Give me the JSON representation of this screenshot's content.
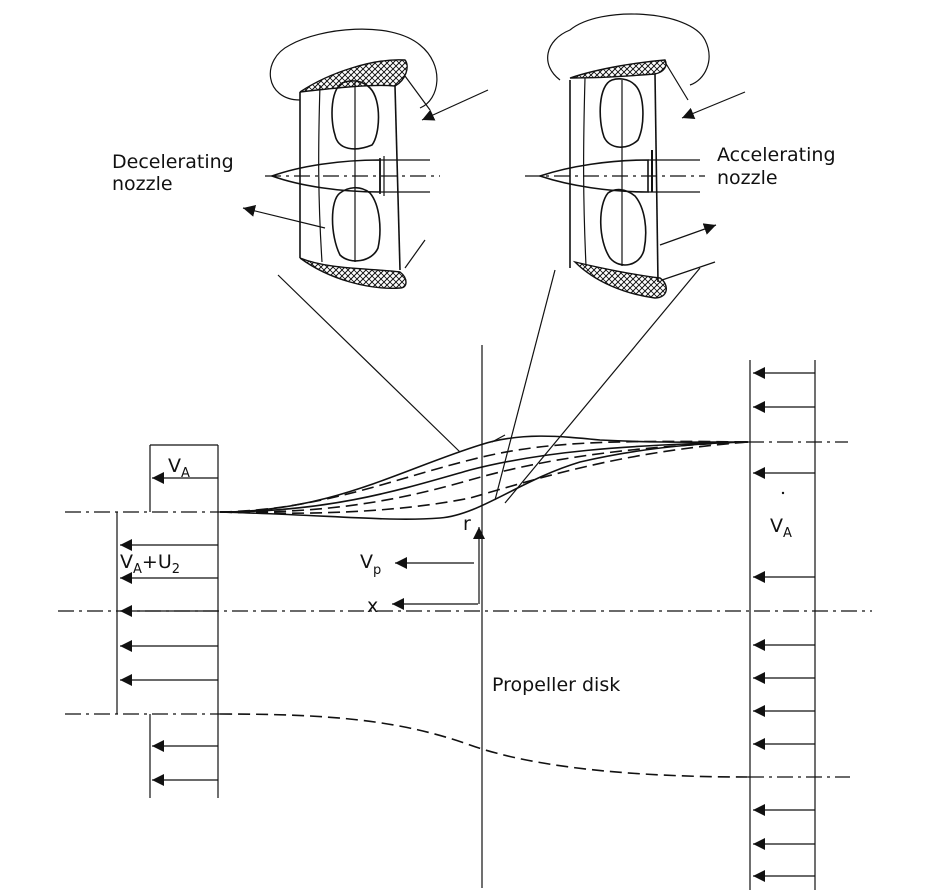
{
  "labels": {
    "decelerating_line1": "Decelerating",
    "decelerating_line2": "nozzle",
    "accelerating_line1": "Accelerating",
    "accelerating_line2": "nozzle",
    "va_left_main": "V",
    "va_left_sub": "A",
    "va_u2_v": "V",
    "va_u2_a": "A",
    "va_u2_plus_u": "+U",
    "va_u2_2": "2",
    "va_right_main": "V",
    "va_right_sub": "A",
    "vp_main": "V",
    "vp_sub": "p",
    "r": "r",
    "x": "x",
    "propeller_disk": "Propeller disk"
  }
}
